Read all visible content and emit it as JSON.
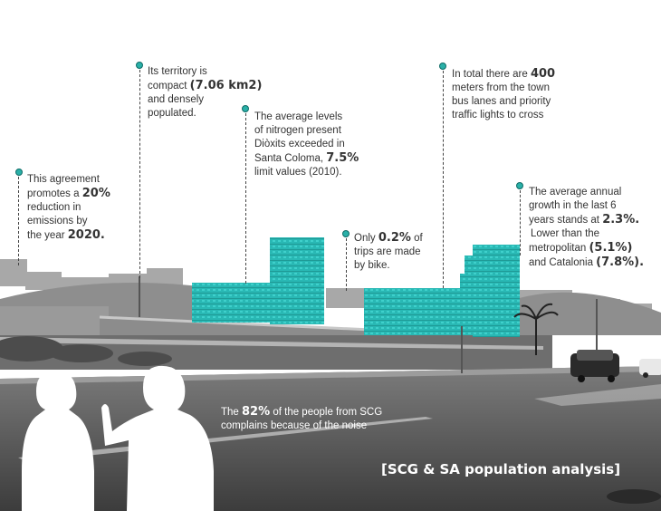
{
  "annotations": {
    "agreement": {
      "lines": [
        "This agreement",
        "promotes a ",
        "reduction in",
        "emissions by",
        "the year "
      ],
      "highlight_pct": "20%",
      "highlight_year": "2020."
    },
    "territory": {
      "lines": [
        "Its territory is",
        "compact ",
        "and densely",
        "populated."
      ],
      "highlight": "(7.06 km2)"
    },
    "nitrogen": {
      "lines": [
        "The average levels",
        "of nitrogen present",
        "Diòxits exceeded in",
        "Santa Coloma, ",
        "limit values (2010)."
      ],
      "highlight": "7.5%"
    },
    "bike": {
      "lines": [
        "Only ",
        " of",
        "trips are made",
        "by bike."
      ],
      "highlight": "0.2%"
    },
    "bus": {
      "lines": [
        "In total there are ",
        "meters from the town",
        "bus lanes and priority",
        "traffic lights to cross"
      ],
      "highlight": "400"
    },
    "growth": {
      "lines": [
        "The average annual",
        "growth in the last 6",
        "years stands at ",
        " Lower than the",
        "metropolitan ",
        "and Catalonia "
      ],
      "highlight_growth": "2.3%.",
      "highlight_metro": "(5.1%)",
      "highlight_cat": "(7.8%)."
    }
  },
  "noise": {
    "pre": "The ",
    "highlight": "82%",
    "post": " of the people from SCG",
    "line2": "complains because of the noise"
  },
  "caption": "[SCG & SA population analysis]",
  "colors": {
    "accent": "#2ab0a8",
    "building_teal": "#29b8b4"
  },
  "icons": {
    "marker": "teal-dot-icon"
  }
}
